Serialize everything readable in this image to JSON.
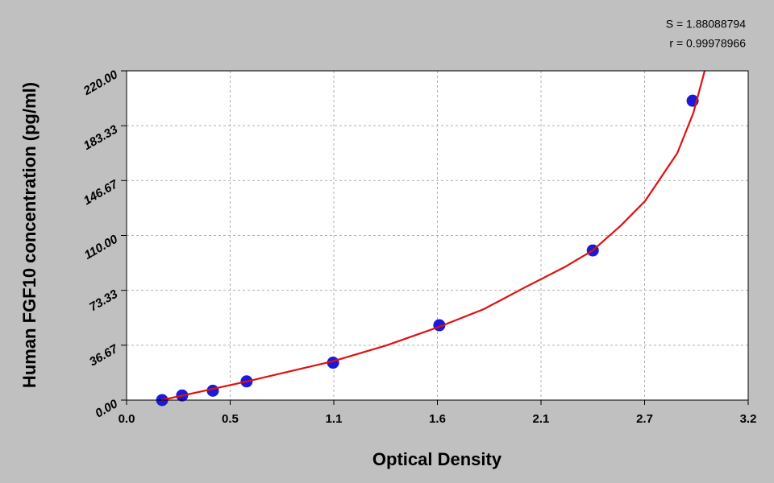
{
  "chart_data": {
    "type": "scatter",
    "x_label": "Optical Density",
    "y_label": "Human FGF10  concentration (pg/ml)",
    "annotations": [
      "S = 1.88088794",
      "r = 0.99978966"
    ],
    "xlim": [
      0,
      3.2
    ],
    "xticks": [
      {
        "value": 0,
        "label": "0.0"
      },
      {
        "value": 0.5333,
        "label": "0.5"
      },
      {
        "value": 1.0667,
        "label": "1.1"
      },
      {
        "value": 1.6,
        "label": "1.6"
      },
      {
        "value": 2.1333,
        "label": "2.1"
      },
      {
        "value": 2.6667,
        "label": "2.7"
      },
      {
        "value": 3.2,
        "label": "3.2"
      }
    ],
    "ylim": [
      0,
      220
    ],
    "yticks": [
      {
        "value": 0,
        "label": "0.00"
      },
      36.67,
      73.33,
      {
        "value": 110,
        "label": "110.00"
      },
      146.67,
      183.33,
      {
        "value": 220,
        "label": "220.00"
      }
    ],
    "grid": true,
    "series": [
      {
        "kind": "points",
        "color": "#1a1ad8",
        "x": [
          0.183,
          0.286,
          0.444,
          0.618,
          1.063,
          1.61,
          2.4,
          2.914
        ],
        "values": [
          0,
          3.12,
          6.25,
          12.5,
          25,
          50,
          100,
          200
        ]
      },
      {
        "kind": "curve",
        "color": "#e01010",
        "x": [
          0.18,
          0.618,
          1.063,
          1.341,
          1.61,
          1.839,
          2.046,
          2.254,
          2.4,
          2.545,
          2.669,
          2.835,
          2.918,
          2.976
        ],
        "values": [
          0,
          12.4,
          26,
          36.7,
          49,
          60.8,
          75,
          88.8,
          100,
          116.7,
          133,
          165,
          192,
          220
        ]
      }
    ]
  }
}
